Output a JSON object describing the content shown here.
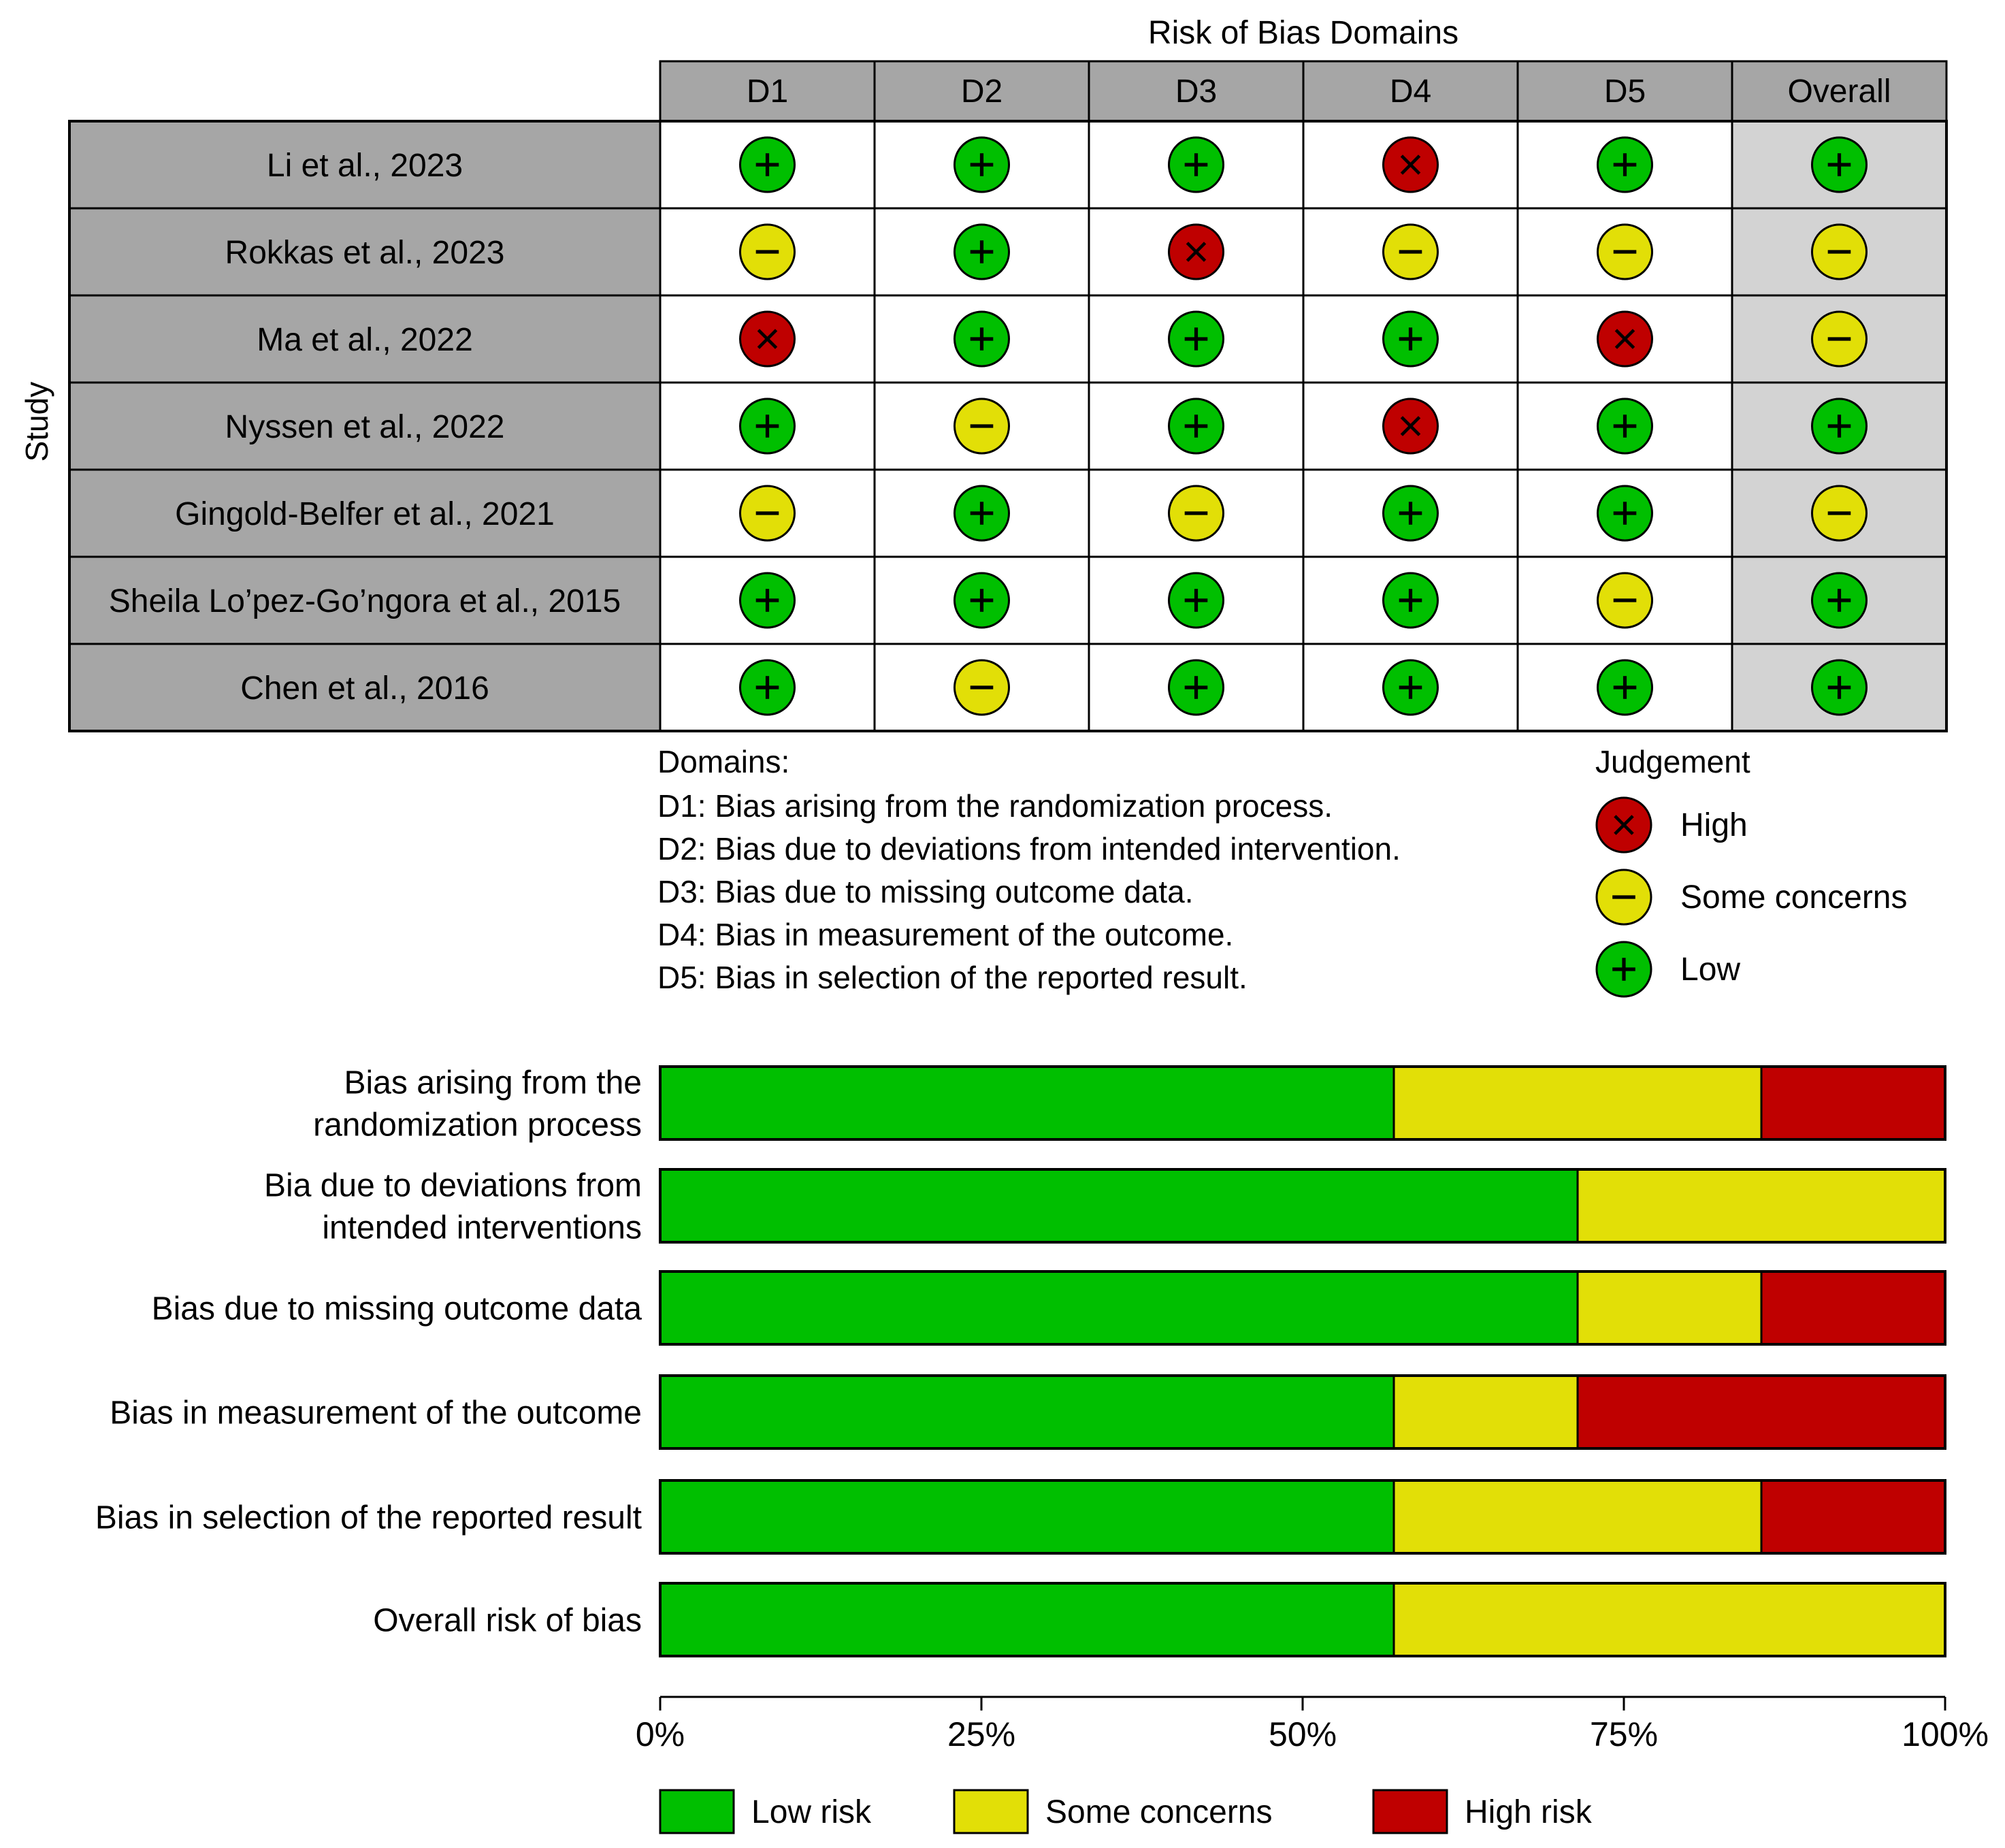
{
  "chart_data": [
    {
      "type": "table",
      "title": "Risk of Bias Domains",
      "row_axis_label": "Study",
      "columns": [
        "D1",
        "D2",
        "D3",
        "D4",
        "D5",
        "Overall"
      ],
      "studies": [
        {
          "name": "Li et al., 2023",
          "judgements": [
            "low",
            "low",
            "low",
            "high",
            "low",
            "low"
          ]
        },
        {
          "name": "Rokkas et al., 2023",
          "judgements": [
            "some",
            "low",
            "high",
            "some",
            "some",
            "some"
          ]
        },
        {
          "name": "Ma et al., 2022",
          "judgements": [
            "high",
            "low",
            "low",
            "low",
            "high",
            "some"
          ]
        },
        {
          "name": "Nyssen et al., 2022",
          "judgements": [
            "low",
            "some",
            "low",
            "high",
            "low",
            "low"
          ]
        },
        {
          "name": "Gingold-Belfer et al., 2021",
          "judgements": [
            "some",
            "low",
            "some",
            "low",
            "low",
            "some"
          ]
        },
        {
          "name": "Sheila Lo’pez-Go’ngora et al., 2015",
          "judgements": [
            "low",
            "low",
            "low",
            "low",
            "some",
            "low"
          ]
        },
        {
          "name": "Chen et al., 2016",
          "judgements": [
            "low",
            "some",
            "low",
            "low",
            "low",
            "low"
          ]
        }
      ],
      "domains_title": "Domains:",
      "domains": [
        "D1: Bias arising from the randomization process.",
        "D2: Bias due to deviations from intended intervention.",
        "D3: Bias due to missing outcome data.",
        "D4: Bias in measurement of the outcome.",
        "D5: Bias in selection of the reported result."
      ],
      "legend_title": "Judgement",
      "legend": [
        {
          "key": "high",
          "label": "High"
        },
        {
          "key": "some",
          "label": "Some concerns"
        },
        {
          "key": "low",
          "label": "Low"
        }
      ]
    },
    {
      "type": "bar",
      "orientation": "horizontal",
      "stacked": true,
      "categories": [
        [
          "Bias arising from the",
          "randomization process"
        ],
        [
          "Bia due to deviations from",
          "intended interventions"
        ],
        [
          "Bias due to missing outcome data"
        ],
        [
          "Bias in measurement of the outcome"
        ],
        [
          "Bias in selection of the reported result"
        ],
        [
          "Overall risk of bias"
        ]
      ],
      "series": [
        {
          "name": "Low risk",
          "key": "low",
          "values": [
            57.1,
            71.4,
            71.4,
            57.1,
            57.1,
            57.1
          ]
        },
        {
          "name": "Some concerns",
          "key": "some",
          "values": [
            28.6,
            28.6,
            14.3,
            14.3,
            28.6,
            42.9
          ]
        },
        {
          "name": "High risk",
          "key": "high",
          "values": [
            14.3,
            0,
            14.3,
            28.6,
            14.3,
            0
          ]
        }
      ],
      "xlim": [
        0,
        100
      ],
      "xticks": [
        "0%",
        "25%",
        "50%",
        "75%",
        "100%"
      ]
    }
  ],
  "colors": {
    "low": "#00bf00",
    "some": "#e2df07",
    "high": "#bf0000",
    "header_bg": "#a6a6a6",
    "overall_bg": "#d3d3d3"
  }
}
